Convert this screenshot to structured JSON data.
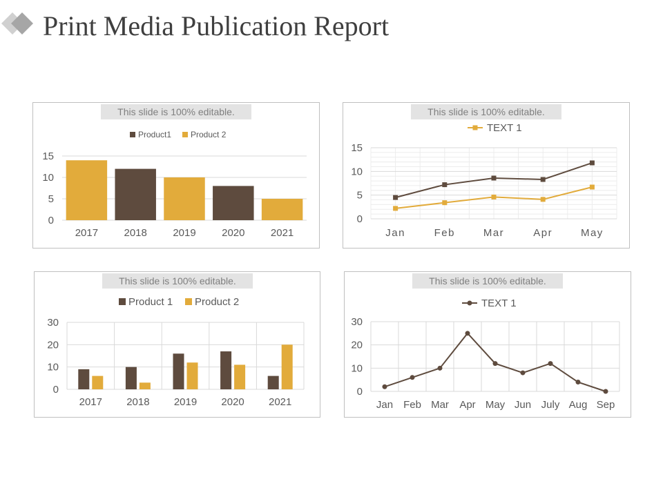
{
  "page": {
    "title": "Print Media Publication Report"
  },
  "colors": {
    "brown": "#5e4b3e",
    "gold": "#e2ab3b",
    "grid": "#d9d9d9",
    "axis_text": "#595959"
  },
  "panels": [
    {
      "banner": "This slide is 100% editable."
    },
    {
      "banner": "This slide is 100% editable."
    },
    {
      "banner": "This slide is 100% editable."
    },
    {
      "banner": "This slide is 100% editable."
    }
  ],
  "chart_data": [
    {
      "type": "bar",
      "categories": [
        "2017",
        "2018",
        "2019",
        "2020",
        "2021"
      ],
      "values": [
        14,
        12,
        10,
        8,
        5
      ],
      "point_colors": [
        "gold",
        "brown",
        "gold",
        "brown",
        "gold"
      ],
      "legend": [
        {
          "name": "Product1",
          "color": "brown"
        },
        {
          "name": "Product 2",
          "color": "gold"
        }
      ],
      "ylim": [
        0,
        15
      ],
      "yticks": [
        0,
        5,
        10,
        15
      ],
      "grid": true,
      "legend_position": "top"
    },
    {
      "type": "line",
      "categories": [
        "Jan",
        "Feb",
        "Mar",
        "Apr",
        "May"
      ],
      "series": [
        {
          "values": [
            4.5,
            7.2,
            8.6,
            8.3,
            11.8
          ],
          "color": "brown",
          "marker": "square"
        },
        {
          "name": "TEXT 1",
          "values": [
            2.2,
            3.4,
            4.6,
            4.1,
            6.7
          ],
          "color": "gold",
          "marker": "square"
        }
      ],
      "ylim": [
        0,
        15
      ],
      "yticks": [
        0,
        5,
        10,
        15
      ],
      "grid": true,
      "minor_grid": true,
      "legend_position": "top"
    },
    {
      "type": "bar",
      "categories": [
        "2017",
        "2018",
        "2019",
        "2020",
        "2021"
      ],
      "series": [
        {
          "name": "Product 1",
          "values": [
            9,
            10,
            16,
            17,
            6
          ],
          "color": "brown"
        },
        {
          "name": "Product 2",
          "values": [
            6,
            3,
            12,
            11,
            20
          ],
          "color": "gold"
        }
      ],
      "ylim": [
        0,
        30
      ],
      "yticks": [
        0,
        10,
        20,
        30
      ],
      "grid": true,
      "legend_position": "top"
    },
    {
      "type": "line",
      "categories": [
        "Jan",
        "Feb",
        "Mar",
        "Apr",
        "May",
        "Jun",
        "July",
        "Aug",
        "Sep"
      ],
      "series": [
        {
          "name": "TEXT 1",
          "values": [
            2,
            6,
            10,
            25,
            12,
            8,
            12,
            4,
            0
          ],
          "color": "brown",
          "marker": "circle"
        }
      ],
      "ylim": [
        0,
        30
      ],
      "yticks": [
        0,
        10,
        20,
        30
      ],
      "grid": true,
      "legend_position": "top"
    }
  ]
}
